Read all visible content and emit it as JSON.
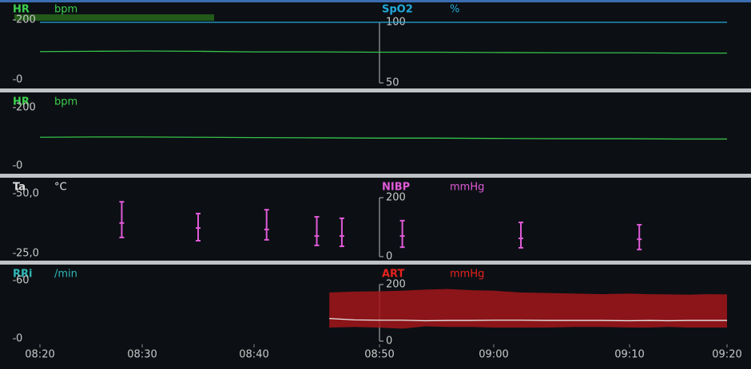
{
  "x_axis": {
    "ticks": [
      "08:20",
      "08:30",
      "08:40",
      "08:50",
      "09:00",
      "09:10",
      "09:20"
    ]
  },
  "panels": [
    {
      "left": {
        "label": "HR",
        "unit": "bpm",
        "color": "#3ccf4e",
        "ylim": [
          0,
          200
        ],
        "yticks": [
          0,
          200
        ]
      },
      "right": {
        "label": "SpO2",
        "unit": "%",
        "color": "#22a9dc",
        "ylim": [
          50,
          100
        ],
        "yticks": [
          50,
          100
        ]
      },
      "series": [
        {
          "axis": "left",
          "type": "line",
          "color": "#36c24a",
          "x": [
            "08:20",
            "08:25",
            "08:30",
            "08:35",
            "08:40",
            "08:45",
            "08:50",
            "08:55",
            "09:00",
            "09:05",
            "09:10",
            "09:15",
            "09:20"
          ],
          "values": [
            94,
            95,
            96,
            95,
            93,
            93,
            92,
            92,
            91,
            90,
            90,
            89,
            89
          ]
        },
        {
          "axis": "right",
          "type": "line",
          "color": "#22a9dc",
          "x": [
            "08:20",
            "08:25",
            "08:30",
            "08:35",
            "08:40",
            "08:45",
            "08:50",
            "08:55",
            "09:00",
            "09:05",
            "09:10",
            "09:15",
            "09:20"
          ],
          "values": [
            100,
            100,
            100,
            100,
            100,
            100,
            100,
            100,
            100,
            100,
            100,
            100,
            100
          ]
        }
      ]
    },
    {
      "left": {
        "label": "HR",
        "unit": "bpm",
        "color": "#3ccf4e",
        "ylim": [
          0,
          200
        ],
        "yticks": [
          0,
          200
        ]
      },
      "series": [
        {
          "axis": "left",
          "type": "line",
          "color": "#36c24a",
          "x": [
            "08:20",
            "08:25",
            "08:30",
            "08:35",
            "08:40",
            "08:45",
            "08:50",
            "08:55",
            "09:00",
            "09:05",
            "09:10",
            "09:15",
            "09:20"
          ],
          "values": [
            98,
            99,
            99,
            98,
            97,
            96,
            95,
            95,
            94,
            93,
            93,
            92,
            92
          ]
        }
      ]
    },
    {
      "left": {
        "label": "Ta",
        "unit": "°C",
        "color": "#e0e0e0",
        "ylim": [
          25,
          50
        ],
        "yticks": [
          {
            "value": 25,
            "label": "25,0"
          },
          {
            "value": 50,
            "label": "50,0"
          }
        ]
      },
      "right": {
        "label": "NIBP",
        "unit": "mmHg",
        "color": "#e05ad8",
        "ylim": [
          0,
          200
        ],
        "yticks": [
          0,
          200
        ]
      },
      "series": [
        {
          "axis": "right",
          "type": "range",
          "color": "#e05ad8",
          "x": [
            "08:28",
            "08:35",
            "08:41",
            "08:45",
            "08:47",
            "08:52",
            "09:02",
            "09:11"
          ],
          "high": [
            186,
            146,
            159,
            135,
            130,
            122,
            116,
            108
          ],
          "mid": [
            114,
            97,
            92,
            70,
            70,
            70,
            62,
            59
          ],
          "low": [
            65,
            54,
            57,
            38,
            35,
            32,
            30,
            24
          ]
        }
      ]
    },
    {
      "left": {
        "label": "RRi",
        "unit": "/min",
        "color": "#2fb8b8",
        "ylim": [
          0,
          60
        ],
        "yticks": [
          0,
          60
        ]
      },
      "right": {
        "label": "ART",
        "unit": "mmHg",
        "color": "#e8221e",
        "ylim": [
          0,
          200
        ],
        "yticks": [
          0,
          200
        ]
      },
      "series": [
        {
          "axis": "right",
          "type": "band",
          "color": "#a3161a",
          "x": [
            "08:46",
            "08:48",
            "08:50",
            "08:52",
            "08:54",
            "08:56",
            "08:58",
            "09:00",
            "09:02",
            "09:04",
            "09:06",
            "09:08",
            "09:10",
            "09:12",
            "09:14",
            "09:16",
            "09:18",
            "09:20"
          ],
          "high": [
            172,
            175,
            176,
            178,
            182,
            184,
            180,
            178,
            172,
            170,
            168,
            166,
            168,
            166,
            165,
            164,
            166,
            165
          ],
          "low": [
            48,
            50,
            48,
            44,
            52,
            50,
            50,
            48,
            48,
            48,
            50,
            50,
            48,
            48,
            50,
            48,
            48,
            48
          ]
        },
        {
          "axis": "right",
          "type": "line",
          "color": "#e8e8e8",
          "x": [
            "08:46",
            "08:48",
            "08:50",
            "08:52",
            "08:54",
            "08:56",
            "08:58",
            "09:00",
            "09:02",
            "09:04",
            "09:06",
            "09:08",
            "09:10",
            "09:12",
            "09:14",
            "09:16",
            "09:18",
            "09:20"
          ],
          "values": [
            80,
            75,
            74,
            74,
            72,
            73,
            73,
            74,
            74,
            73,
            73,
            73,
            72,
            73,
            72,
            73,
            73,
            73
          ]
        }
      ]
    }
  ]
}
